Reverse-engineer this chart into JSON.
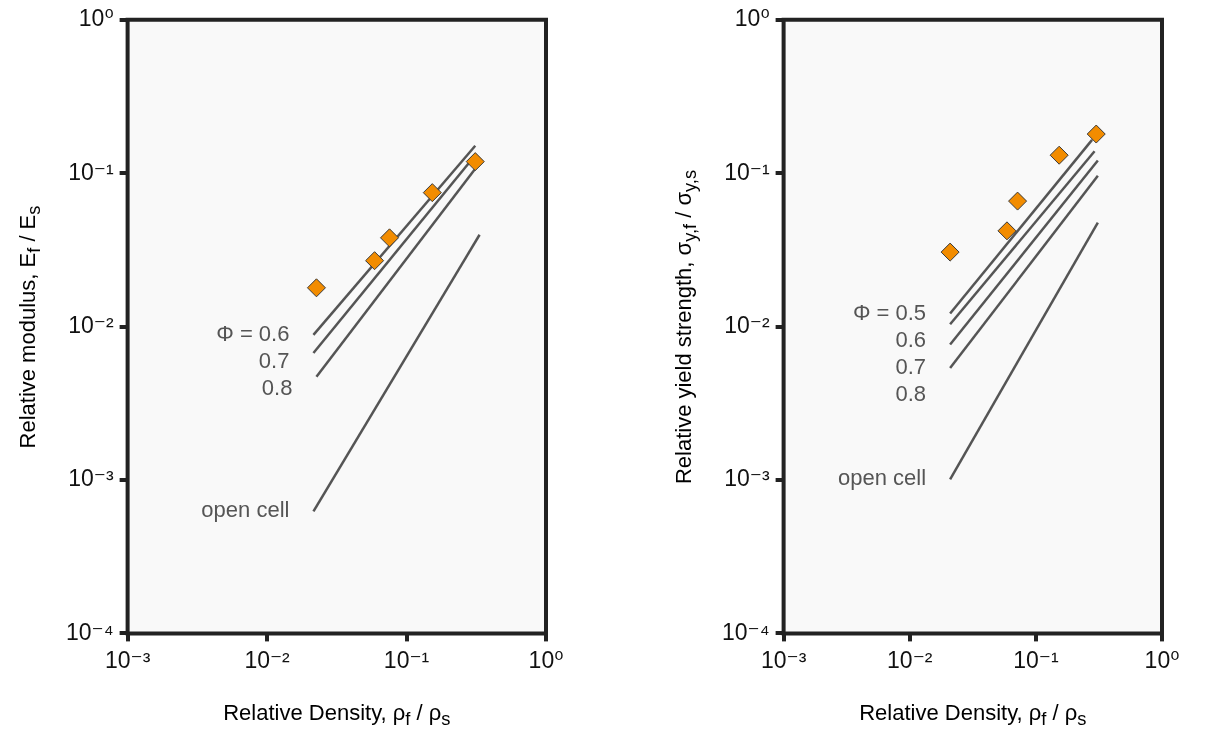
{
  "chart_data": [
    {
      "type": "scatter",
      "xlabel": "Relative Density,  ρ$_{f}$ / ρ$_{s}$",
      "ylabel": "Relative modulus,  E$_{f}$ / E$_{s}$",
      "log": "xy",
      "legend": false,
      "xlim": [
        0.001,
        1
      ],
      "xticks": [
        {
          "value": 0.001,
          "label": "10⁻³"
        },
        {
          "value": 0.01,
          "label": "10⁻²"
        },
        {
          "value": 0.1,
          "label": "10⁻¹"
        },
        {
          "value": 1,
          "label": "10⁰"
        }
      ],
      "ylim": [
        0.0001,
        1
      ],
      "yticks": [
        {
          "value": 0.0001,
          "label": "10⁻⁴"
        },
        {
          "value": 0.001,
          "label": "10⁻³"
        },
        {
          "value": 0.01,
          "label": "10⁻²"
        },
        {
          "value": 0.1,
          "label": "10⁻¹"
        },
        {
          "value": 1,
          "label": "10⁰"
        }
      ],
      "series": [
        {
          "marker": "diamond",
          "color": "#f28c00",
          "x": [
            0.0226,
            0.059,
            0.0755,
            0.153,
            0.311
          ],
          "values": [
            0.0179,
            0.0269,
            0.0379,
            0.0747,
            0.119
          ]
        },
        {
          "type": "line",
          "name": "Φ = 0.6",
          "color": "#555555",
          "x": [
            0.0215,
            0.311
          ],
          "values": [
            0.00883,
            0.151
          ]
        },
        {
          "type": "line",
          "name": "0.7",
          "color": "#555555",
          "x": [
            0.0215,
            0.311
          ],
          "values": [
            0.00673,
            0.131
          ]
        },
        {
          "type": "line",
          "name": "0.8",
          "color": "#555555",
          "x": [
            0.0226,
            0.311
          ],
          "values": [
            0.00471,
            0.107
          ]
        },
        {
          "type": "line",
          "name": "open cell",
          "color": "#555555",
          "x": [
            0.0215,
            0.334
          ],
          "values": [
            0.000624,
            0.0397
          ]
        }
      ]
    },
    {
      "type": "scatter",
      "xlabel": "Relative Density,  ρ$_{f}$ / ρ$_{s}$",
      "ylabel": "Relative yield strength,  σ$_{y,f}$ / σ$_{y,s}$",
      "log": "xy",
      "legend": false,
      "xlim": [
        0.001,
        1
      ],
      "xticks": [
        {
          "value": 0.001,
          "label": "10⁻³"
        },
        {
          "value": 0.01,
          "label": "10⁻²"
        },
        {
          "value": 0.1,
          "label": "10⁻¹"
        },
        {
          "value": 1,
          "label": "10⁰"
        }
      ],
      "ylim": [
        0.0001,
        1
      ],
      "yticks": [
        {
          "value": 0.0001,
          "label": "10⁻⁴"
        },
        {
          "value": 0.001,
          "label": "10⁻³"
        },
        {
          "value": 0.01,
          "label": "10⁻²"
        },
        {
          "value": 0.1,
          "label": "10⁻¹"
        },
        {
          "value": 1,
          "label": "10⁰"
        }
      ],
      "series": [
        {
          "marker": "diamond",
          "color": "#f28c00",
          "x": [
            0.0209,
            0.059,
            0.0716,
            0.153,
            0.301
          ],
          "values": [
            0.0306,
            0.0421,
            0.0658,
            0.131,
            0.18
          ]
        },
        {
          "type": "line",
          "name": "Φ = 0.5",
          "color": "#555555",
          "x": [
            0.0209,
            0.279
          ],
          "values": [
            0.01216,
            0.165
          ]
        },
        {
          "type": "line",
          "name": "0.6",
          "color": "#555555",
          "x": [
            0.0209,
            0.292
          ],
          "values": [
            0.01035,
            0.139
          ]
        },
        {
          "type": "line",
          "name": "0.7",
          "color": "#555555",
          "x": [
            0.0209,
            0.31
          ],
          "values": [
            0.00764,
            0.121
          ]
        },
        {
          "type": "line",
          "name": "0.8",
          "color": "#555555",
          "x": [
            0.0209,
            0.31
          ],
          "values": [
            0.00537,
            0.0962
          ]
        },
        {
          "type": "line",
          "name": "open cell",
          "color": "#555555",
          "x": [
            0.0209,
            0.31
          ],
          "values": [
            0.00101,
            0.0477
          ]
        }
      ]
    }
  ]
}
